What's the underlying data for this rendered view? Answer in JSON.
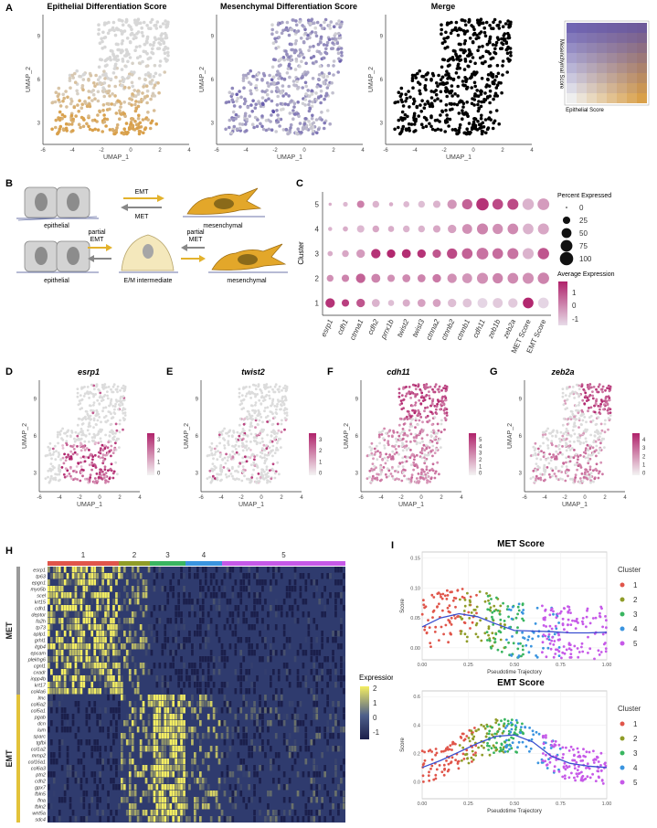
{
  "panels": {
    "A": "A",
    "B": "B",
    "C": "C",
    "D": "D",
    "E": "E",
    "F": "F",
    "G": "G",
    "H": "H",
    "I": "I"
  },
  "colors": {
    "epithelial": "#d9a04a",
    "mesenchymal": "#5b4ea8",
    "grey": "#cfcfcf",
    "feature_high": "#b0226b",
    "heat_low": "#1b1f4b",
    "heat_mid": "#2f3b6e",
    "heat_high": "#f4ee62",
    "cluster": [
      "#e0554a",
      "#8f9c28",
      "#39b560",
      "#3a94df",
      "#c659e8"
    ]
  },
  "umap_axes": {
    "xlabel": "UMAP_1",
    "ylabel": "UMAP_2",
    "xticks": [
      "-6",
      "-4",
      "-2",
      "0",
      "2",
      "4"
    ],
    "yticks": [
      "3",
      "6",
      "9"
    ]
  },
  "panel_a": {
    "titles": [
      "Epithelial Differentiation Score",
      "Mesenchymal Differentiation Score",
      "Merge"
    ],
    "legend_xlabel": "Epithelial Score",
    "legend_ylabel": "Mesenchymal Score"
  },
  "panel_b": {
    "emt": "EMT",
    "met": "MET",
    "epithelial": "epithelial",
    "mesenchymal": "mesenchymal",
    "partial_emt": [
      "partial",
      "EMT"
    ],
    "partial_met": [
      "partial",
      "MET"
    ],
    "intermediate": "E/M intermediate"
  },
  "chart_data": [
    {
      "type": "scatter",
      "title": "Epithelial Differentiation Score",
      "xlabel": "UMAP_1",
      "ylabel": "UMAP_2",
      "xlim": [
        -6,
        4
      ],
      "ylim": [
        1.5,
        10.5
      ]
    },
    {
      "type": "scatter",
      "title": "Mesenchymal Differentiation Score",
      "xlabel": "UMAP_1",
      "ylabel": "UMAP_2",
      "xlim": [
        -6,
        4
      ],
      "ylim": [
        1.5,
        10.5
      ]
    },
    {
      "type": "scatter",
      "title": "Merge",
      "xlabel": "UMAP_1",
      "ylabel": "UMAP_2",
      "xlim": [
        -6,
        4
      ],
      "ylim": [
        1.5,
        10.5
      ]
    },
    {
      "type": "scatter",
      "subtype": "dotplot",
      "ylabel": "Cluster",
      "genes": [
        "esrp1",
        "cdh1",
        "ctnna1",
        "cdh2",
        "prrx1b",
        "twist2",
        "twist3",
        "ctnna2",
        "ctnnb2",
        "ctnnb1",
        "cdh11",
        "zeb1b",
        "zeb2a",
        "MET Score",
        "EMT Score"
      ],
      "clusters": [
        "1",
        "2",
        "3",
        "4",
        "5"
      ],
      "percent_expressed": [
        [
          45,
          25,
          35,
          30,
          15,
          25,
          30,
          30,
          35,
          40,
          50,
          50,
          45,
          60,
          60
        ],
        [
          20,
          25,
          45,
          40,
          25,
          30,
          30,
          35,
          45,
          50,
          65,
          55,
          60,
          65,
          70
        ],
        [
          10,
          20,
          35,
          45,
          35,
          40,
          35,
          35,
          55,
          60,
          75,
          60,
          65,
          65,
          70
        ],
        [
          5,
          10,
          25,
          20,
          15,
          20,
          20,
          25,
          35,
          50,
          65,
          55,
          60,
          60,
          65
        ],
        [
          2,
          8,
          25,
          20,
          5,
          15,
          20,
          25,
          45,
          55,
          85,
          60,
          65,
          70,
          75
        ]
      ],
      "average_expression": [
        [
          1.6,
          1.4,
          1.0,
          -0.6,
          -0.8,
          -0.5,
          -0.3,
          -0.3,
          -0.8,
          -0.9,
          -1.2,
          -1.0,
          -1.0,
          1.8,
          -1.2
        ],
        [
          0.0,
          0.2,
          0.8,
          0.2,
          0.0,
          0.1,
          0.2,
          0.4,
          0.0,
          -0.1,
          0.0,
          0.2,
          0.1,
          0.0,
          0.2
        ],
        [
          -0.5,
          -0.4,
          -0.2,
          1.6,
          1.8,
          1.7,
          1.6,
          1.0,
          1.2,
          0.8,
          0.5,
          0.6,
          0.5,
          -0.6,
          1.0
        ],
        [
          -0.6,
          -0.5,
          -0.7,
          -0.4,
          -0.5,
          -0.6,
          -0.6,
          -0.4,
          -0.3,
          0.0,
          0.2,
          0.0,
          0.1,
          -0.6,
          -0.4
        ],
        [
          -0.5,
          -0.7,
          0.3,
          -0.6,
          -0.5,
          -0.7,
          -0.8,
          -0.6,
          -0.1,
          0.8,
          1.6,
          1.2,
          1.2,
          -0.6,
          -0.2
        ]
      ],
      "size_legend_title": "Percent Expressed",
      "size_legend": [
        "0",
        "25",
        "50",
        "75",
        "100"
      ],
      "color_legend_title": "Average Expression",
      "color_legend": [
        "1",
        "0",
        "-1"
      ]
    },
    {
      "type": "scatter",
      "title": "esrp1",
      "xlabel": "UMAP_1",
      "ylabel": "UMAP_2",
      "colorbar": [
        "3",
        "2",
        "1",
        "0"
      ]
    },
    {
      "type": "scatter",
      "title": "twist2",
      "xlabel": "UMAP_1",
      "ylabel": "UMAP_2",
      "colorbar": [
        "3",
        "2",
        "1",
        "0"
      ]
    },
    {
      "type": "scatter",
      "title": "cdh11",
      "xlabel": "UMAP_1",
      "ylabel": "UMAP_2",
      "colorbar": [
        "5",
        "4",
        "3",
        "2",
        "1",
        "0"
      ]
    },
    {
      "type": "scatter",
      "title": "zeb2a",
      "xlabel": "UMAP_1",
      "ylabel": "UMAP_2",
      "colorbar": [
        "4",
        "3",
        "2",
        "1",
        "0"
      ]
    },
    {
      "type": "heatmap",
      "clusters": [
        "1",
        "2",
        "3",
        "4",
        "5"
      ],
      "groups": [
        "MET",
        "EMT"
      ],
      "met_genes": [
        "esrp1",
        "tp63",
        "epgn1",
        "myo5b",
        "scel",
        "krt15",
        "cdh1",
        "deptor",
        "fa2h",
        "tp73",
        "aplp1",
        "grhl1",
        "itgb4",
        "epcam",
        "plekhg6",
        "cgnl1",
        "cxadr",
        "inpp4b",
        "krt17",
        "col4a6"
      ],
      "emt_genes": [
        "lmc",
        "col6a2",
        "col5a1",
        "pgab",
        "dcn",
        "lum",
        "sparc",
        "tgfbi",
        "col1a2",
        "mmp2",
        "col16a1",
        "col6a3",
        "ptn2",
        "cdh2",
        "gpx7",
        "fbln5",
        "flna",
        "fbln2",
        "wnt5a",
        "sdc4"
      ],
      "legend_title": "Expression",
      "legend_ticks": [
        "2",
        "1",
        "0",
        "-1"
      ]
    },
    {
      "type": "scatter",
      "title": "MET Score",
      "xlabel": "Pseudotime Trajectory",
      "ylabel": "Score",
      "xticks": [
        "0.00",
        "0.25",
        "0.50",
        "0.75",
        "1.00"
      ],
      "yticks": [
        "0.00",
        "0.05",
        "0.10",
        "0.15"
      ],
      "xlim": [
        0,
        1
      ],
      "ylim": [
        -0.02,
        0.16
      ],
      "trend": {
        "x": [
          0.0,
          0.1,
          0.2,
          0.3,
          0.4,
          0.5,
          0.6,
          0.7,
          0.8,
          0.9,
          1.0
        ],
        "y": [
          0.035,
          0.05,
          0.057,
          0.052,
          0.04,
          0.029,
          0.028,
          0.027,
          0.025,
          0.025,
          0.026
        ]
      },
      "legend_title": "Cluster",
      "legend": [
        "1",
        "2",
        "3",
        "4",
        "5"
      ]
    },
    {
      "type": "scatter",
      "title": "EMT Score",
      "xlabel": "Pseudotime Trajectory",
      "ylabel": "Score",
      "xticks": [
        "0.00",
        "0.25",
        "0.50",
        "0.75",
        "1.00"
      ],
      "yticks": [
        "0.0",
        "0.2",
        "0.4",
        "0.6"
      ],
      "xlim": [
        0,
        1
      ],
      "ylim": [
        -0.12,
        0.64
      ],
      "trend": {
        "x": [
          0.0,
          0.1,
          0.2,
          0.3,
          0.4,
          0.5,
          0.6,
          0.7,
          0.8,
          0.9,
          1.0
        ],
        "y": [
          0.1,
          0.15,
          0.21,
          0.27,
          0.32,
          0.33,
          0.28,
          0.18,
          0.13,
          0.11,
          0.1
        ]
      },
      "legend_title": "Cluster",
      "legend": [
        "1",
        "2",
        "3",
        "4",
        "5"
      ]
    }
  ]
}
